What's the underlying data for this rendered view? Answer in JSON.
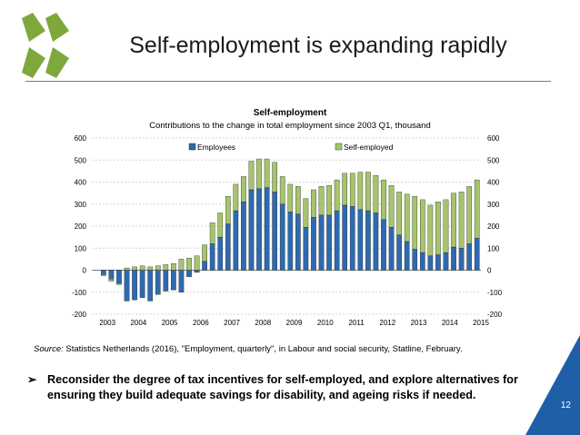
{
  "slide": {
    "title": "Self-employment is expanding rapidly",
    "source_label": "Source:",
    "source_text": " Statistics Netherlands (2016), \"Employment, quarterly\", in Labour and social security, Statline, February.",
    "bullet_glyph": "➢",
    "bullet_text": "Reconsider the degree of tax incentives for self-employed, and explore alternatives for ensuring they build adequate savings for disability, and ageing risks if needed.",
    "page_number": "12",
    "colors": {
      "employees": "#2e6ab0",
      "self_employed": "#a6c46b",
      "accent": "#1f5fa8",
      "logo": "#7fa83c"
    }
  },
  "chart_data": {
    "type": "bar",
    "stacked": true,
    "title": "Self-employment",
    "subtitle": "Contributions to the change in total employment since 2003 Q1, thousand",
    "ylim": [
      -200,
      600
    ],
    "yticks": [
      "600",
      "500",
      "400",
      "300",
      "200",
      "100",
      "0",
      "-100",
      "-200"
    ],
    "ytick_values": [
      600,
      500,
      400,
      300,
      200,
      100,
      0,
      -100,
      -200
    ],
    "xticks": [
      "2003",
      "2004",
      "2005",
      "2006",
      "2007",
      "2008",
      "2009",
      "2010",
      "2011",
      "2012",
      "2013",
      "2014",
      "2015"
    ],
    "legend_position": "top",
    "series": [
      {
        "name": "Employees",
        "color": "#2e6ab0",
        "values": [
          0,
          -20,
          -40,
          -60,
          -140,
          -135,
          -125,
          -140,
          -110,
          -95,
          -90,
          -100,
          -30,
          -10,
          40,
          120,
          150,
          210,
          270,
          310,
          365,
          370,
          375,
          355,
          300,
          265,
          255,
          195,
          240,
          250,
          250,
          270,
          295,
          290,
          275,
          270,
          260,
          230,
          195,
          160,
          130,
          95,
          80,
          65,
          70,
          80,
          105,
          100,
          120,
          145
        ]
      },
      {
        "name": "Self-employed",
        "color": "#a6c46b",
        "values": [
          0,
          -5,
          -10,
          -5,
          10,
          15,
          20,
          15,
          20,
          25,
          30,
          50,
          55,
          65,
          75,
          95,
          110,
          125,
          120,
          115,
          130,
          135,
          130,
          135,
          125,
          125,
          125,
          130,
          125,
          130,
          135,
          140,
          145,
          150,
          170,
          175,
          170,
          180,
          190,
          195,
          215,
          240,
          240,
          230,
          240,
          240,
          245,
          255,
          260,
          265
        ]
      }
    ]
  }
}
